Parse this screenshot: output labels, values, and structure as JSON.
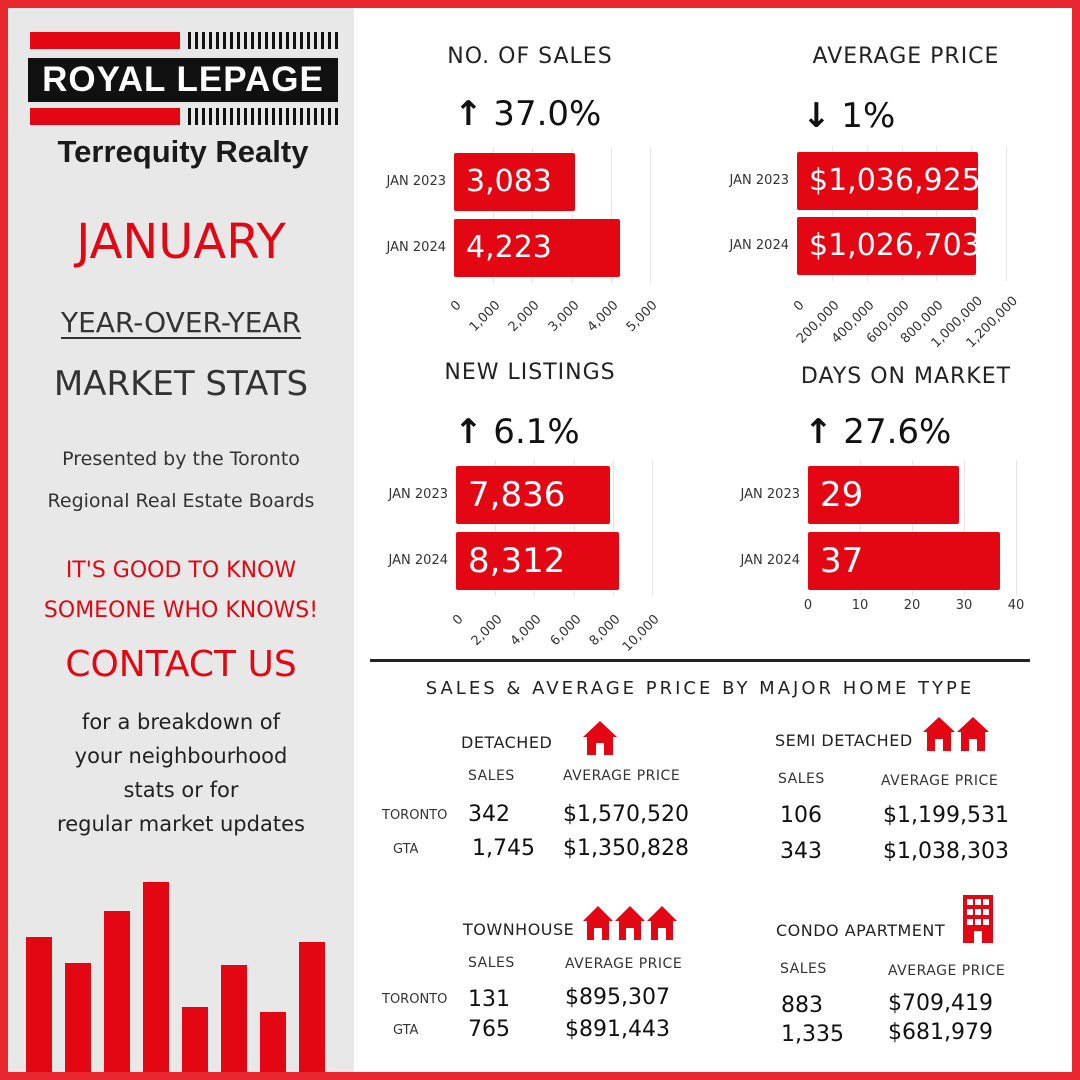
{
  "brand": {
    "logo_text": "ROYAL LEPAGE",
    "subtitle": "Terrequity Realty"
  },
  "sidebar": {
    "month": "JANUARY",
    "yoy": "YEAR-OVER-YEAR",
    "market_stats": "MARKET STATS",
    "presented_line1": "Presented by the Toronto",
    "presented_line2": "Regional Real Estate Boards",
    "tagline_line1": "IT'S GOOD TO KNOW",
    "tagline_line2": "SOMEONE WHO KNOWS!",
    "contact": "CONTACT US",
    "blurb_line1": "for a breakdown of",
    "blurb_line2": "your neighbourhood",
    "blurb_line3": "stats or for",
    "blurb_line4": "regular market updates",
    "decor_bar_values": [
      0.52,
      0.42,
      0.62,
      0.73,
      0.25,
      0.41,
      0.23,
      0.5
    ]
  },
  "colors": {
    "accent": "#e30613",
    "frame": "#e8272f",
    "sidebar_bg": "#e8e8e8"
  },
  "chart_data": [
    {
      "type": "bar",
      "title": "NO. OF SALES",
      "change": {
        "direction": "up",
        "text": "37.0%"
      },
      "categories": [
        "JAN 2023",
        "JAN 2024"
      ],
      "values": [
        3083,
        4223
      ],
      "labels": [
        "3,083",
        "4,223"
      ],
      "xlim": [
        0,
        5000
      ],
      "ticks": [
        "0",
        "1,000",
        "2,000",
        "3,000",
        "4,000",
        "5,000"
      ],
      "orientation": "horizontal"
    },
    {
      "type": "bar",
      "title": "AVERAGE PRICE",
      "change": {
        "direction": "down",
        "text": "1%"
      },
      "categories": [
        "JAN 2023",
        "JAN 2024"
      ],
      "values": [
        1036925,
        1026703
      ],
      "labels": [
        "$1,036,925",
        "$1,026,703"
      ],
      "xlim": [
        0,
        1200000
      ],
      "ticks": [
        "0",
        "200,000",
        "400,000",
        "600,000",
        "800,000",
        "1,000,000",
        "1,200,000"
      ],
      "orientation": "horizontal"
    },
    {
      "type": "bar",
      "title": "NEW LISTINGS",
      "change": {
        "direction": "up",
        "text": "6.1%"
      },
      "categories": [
        "JAN 2023",
        "JAN 2024"
      ],
      "values": [
        7836,
        8312
      ],
      "labels": [
        "7,836",
        "8,312"
      ],
      "xlim": [
        0,
        10000
      ],
      "ticks": [
        "0",
        "2,000",
        "4,000",
        "6,000",
        "8,000",
        "10,000"
      ],
      "orientation": "horizontal"
    },
    {
      "type": "bar",
      "title": "DAYS ON MARKET",
      "change": {
        "direction": "up",
        "text": "27.6%"
      },
      "categories": [
        "JAN 2023",
        "JAN 2024"
      ],
      "values": [
        29,
        37
      ],
      "labels": [
        "29",
        "37"
      ],
      "xlim": [
        0,
        40
      ],
      "ticks": [
        "0",
        "10",
        "20",
        "30",
        "40"
      ],
      "orientation": "horizontal"
    }
  ],
  "home_types": {
    "section_title": "SALES & AVERAGE PRICE BY MAJOR HOME TYPE",
    "col_sales": "SALES",
    "col_price": "AVERAGE PRICE",
    "row_toronto": "TORONTO",
    "row_gta": "GTA",
    "detached": {
      "name": "DETACHED",
      "icon": "house-icon",
      "toronto_sales": "342",
      "toronto_price": "$1,570,520",
      "gta_sales": "1,745",
      "gta_price": "$1,350,828"
    },
    "semi": {
      "name": "SEMI DETACHED",
      "icon": "semi-house-icon",
      "toronto_sales": "106",
      "toronto_price": "$1,199,531",
      "gta_sales": "343",
      "gta_price": "$1,038,303"
    },
    "townhouse": {
      "name": "TOWNHOUSE",
      "icon": "townhouse-icon",
      "toronto_sales": "131",
      "toronto_price": "$895,307",
      "gta_sales": "765",
      "gta_price": "$891,443"
    },
    "condo": {
      "name": "CONDO APARTMENT",
      "icon": "building-icon",
      "toronto_sales": "883",
      "toronto_price": "$709,419",
      "gta_sales": "1,335",
      "gta_price": "$681,979"
    }
  }
}
